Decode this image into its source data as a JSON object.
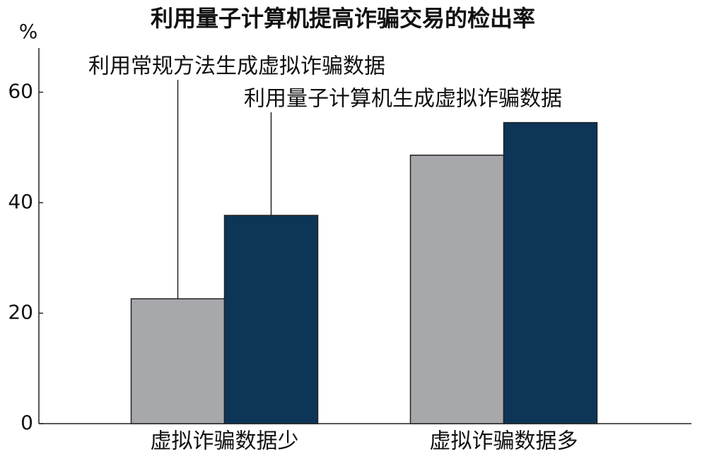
{
  "chart_data": {
    "type": "bar",
    "title": "利用量子计算机提高诈骗交易的检出率",
    "y_label": "%",
    "categories": [
      "虚拟诈骗数据少",
      "虚拟诈骗数据多"
    ],
    "series": [
      {
        "name": "利用常规方法生成虚拟诈骗数据",
        "color": "#a7a8ac",
        "values": [
          22.6,
          48.6
        ]
      },
      {
        "name": "利用量子计算机生成虚拟诈骗数据",
        "color": "#0d3557",
        "values": [
          37.7,
          54.5
        ]
      }
    ],
    "ylim": [
      0,
      68
    ],
    "yticks": [
      0,
      20,
      40,
      60
    ],
    "grid": false
  }
}
